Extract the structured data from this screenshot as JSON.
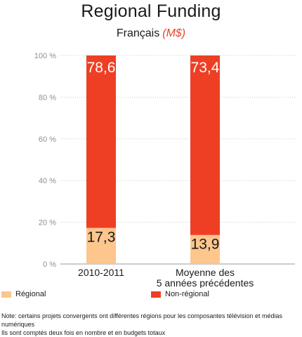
{
  "chart_data": {
    "type": "bar",
    "stacked": true,
    "percent": true,
    "title": "Regional Funding",
    "subtitle": "Français",
    "subtitle_unit": "(M$)",
    "categories": [
      "2010-2011",
      "Moyenne des 5 années précédentes"
    ],
    "category_lines": [
      [
        "2010-2011"
      ],
      [
        "Moyenne des",
        "5 années précédentes"
      ]
    ],
    "series": [
      {
        "name": "Régional",
        "color": "#fdc68d",
        "values": [
          17.3,
          13.9
        ],
        "labels": [
          "17,3",
          "13,9"
        ],
        "label_color": "#1a1a1a"
      },
      {
        "name": "Non-régional",
        "color": "#ee3f24",
        "values": [
          78.6,
          73.4
        ],
        "labels": [
          "78,6",
          "73,4"
        ],
        "label_color": "#ffffff"
      }
    ],
    "y_ticks": [
      {
        "value": 0,
        "label": "0 %"
      },
      {
        "value": 20,
        "label": "20 %"
      },
      {
        "value": 40,
        "label": "40 %"
      },
      {
        "value": 60,
        "label": "60 %"
      },
      {
        "value": 80,
        "label": "80 %"
      },
      {
        "value": 100,
        "label": "100 %"
      }
    ],
    "ylim": [
      0,
      100
    ],
    "grid": true,
    "legend_position": "bottom"
  },
  "note": {
    "line1": "Note: certains projets convergents ont différentes régions pour les composantes télévision et médias numériques",
    "line2": "Ils sont comptés deux fois en nombre et en budgets totaux"
  }
}
